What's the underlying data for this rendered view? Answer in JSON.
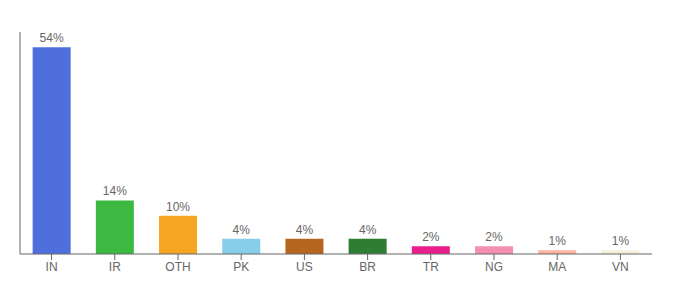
{
  "chart_data": {
    "type": "bar",
    "categories": [
      "IN",
      "IR",
      "OTH",
      "PK",
      "US",
      "BR",
      "TR",
      "NG",
      "MA",
      "VN"
    ],
    "values": [
      54,
      14,
      10,
      4,
      4,
      4,
      2,
      2,
      1,
      1
    ],
    "value_labels": [
      "54%",
      "14%",
      "10%",
      "4%",
      "4%",
      "4%",
      "2%",
      "2%",
      "1%",
      "1%"
    ],
    "colors": [
      "#4f6fdd",
      "#3cb940",
      "#f5a623",
      "#87ceeb",
      "#b5651d",
      "#2e7d32",
      "#e91e8c",
      "#f48fb1",
      "#ffb3a0",
      "#f5f0dc"
    ],
    "ylim": [
      0,
      58
    ],
    "data_labels": true,
    "tick_labels": "x",
    "grid": false
  }
}
